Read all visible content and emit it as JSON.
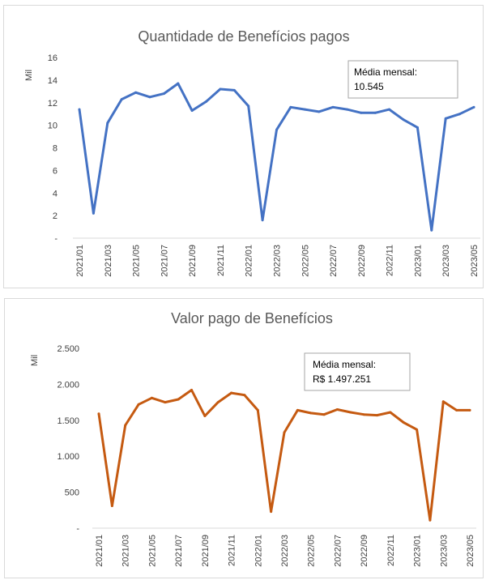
{
  "colors": {
    "series1": "#4472C4",
    "series2": "#C55A11",
    "text": "#595959",
    "axis": "#D9D9D9"
  },
  "chart_data": [
    {
      "type": "line",
      "title": "Quantidade de Benefícios pagos",
      "ylabel": "Mil",
      "xlabel": "",
      "ylim": [
        0,
        16
      ],
      "yticks": [
        "-",
        "2",
        "4",
        "6",
        "8",
        "10",
        "12",
        "14",
        "16"
      ],
      "x": [
        "2021/01",
        "2021/02",
        "2021/03",
        "2021/04",
        "2021/05",
        "2021/06",
        "2021/07",
        "2021/08",
        "2021/09",
        "2021/10",
        "2021/11",
        "2021/12",
        "2022/01",
        "2022/02",
        "2022/03",
        "2022/04",
        "2022/05",
        "2022/06",
        "2022/07",
        "2022/08",
        "2022/09",
        "2022/10",
        "2022/11",
        "2022/12",
        "2023/01",
        "2023/02",
        "2023/03",
        "2023/04",
        "2023/05"
      ],
      "xtick_labels": [
        "2021/01",
        "2021/03",
        "2021/05",
        "2021/07",
        "2021/09",
        "2021/11",
        "2022/01",
        "2022/03",
        "2022/05",
        "2022/07",
        "2022/09",
        "2022/11",
        "2023/01",
        "2023/03",
        "2023/05"
      ],
      "series": [
        {
          "values": [
            11.4,
            2.2,
            10.2,
            12.3,
            12.9,
            12.5,
            12.8,
            13.7,
            11.3,
            12.1,
            13.2,
            13.1,
            11.7,
            1.6,
            9.6,
            11.6,
            11.4,
            11.2,
            11.6,
            11.4,
            11.1,
            11.1,
            11.4,
            10.5,
            9.8,
            0.7,
            10.6,
            11.0,
            11.6
          ]
        }
      ],
      "grid": false,
      "annotation": {
        "line1": "Média mensal:",
        "line2": "10.545"
      }
    },
    {
      "type": "line",
      "title": "Valor pago de Benefícios",
      "ylabel": "Mil",
      "xlabel": "",
      "ylim": [
        0,
        2500
      ],
      "yticks": [
        "-",
        "500",
        "1.000",
        "1.500",
        "2.000",
        "2.500"
      ],
      "x": [
        "2021/01",
        "2021/02",
        "2021/03",
        "2021/04",
        "2021/05",
        "2021/06",
        "2021/07",
        "2021/08",
        "2021/09",
        "2021/10",
        "2021/11",
        "2021/12",
        "2022/01",
        "2022/02",
        "2022/03",
        "2022/04",
        "2022/05",
        "2022/06",
        "2022/07",
        "2022/08",
        "2022/09",
        "2022/10",
        "2022/11",
        "2022/12",
        "2023/01",
        "2023/02",
        "2023/03",
        "2023/04",
        "2023/05"
      ],
      "xtick_labels": [
        "2021/01",
        "2021/03",
        "2021/05",
        "2021/07",
        "2021/09",
        "2021/11",
        "2022/01",
        "2022/03",
        "2022/05",
        "2022/07",
        "2022/09",
        "2022/11",
        "2023/01",
        "2023/03",
        "2023/05"
      ],
      "series": [
        {
          "values": [
            1590,
            310,
            1430,
            1720,
            1810,
            1750,
            1790,
            1920,
            1560,
            1750,
            1880,
            1850,
            1640,
            230,
            1330,
            1640,
            1600,
            1580,
            1650,
            1610,
            1580,
            1570,
            1610,
            1470,
            1370,
            110,
            1760,
            1640,
            1640
          ]
        }
      ],
      "grid": false,
      "annotation": {
        "line1": "Média mensal:",
        "line2": "R$ 1.497.251"
      }
    }
  ]
}
